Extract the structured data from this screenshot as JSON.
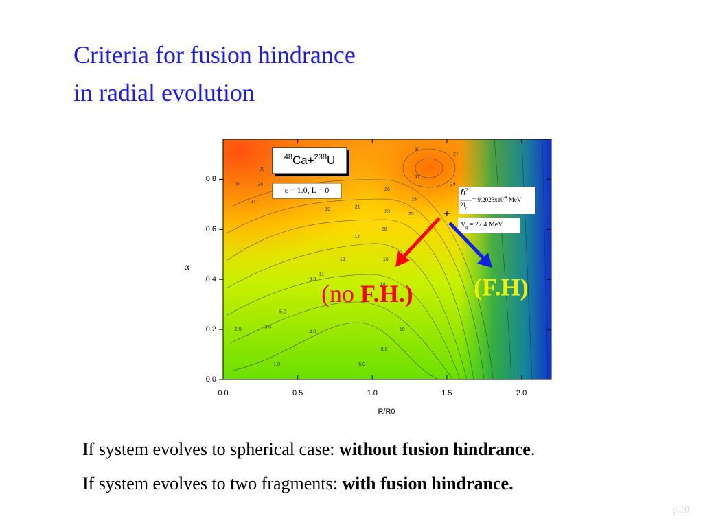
{
  "slide": {
    "title": [
      "Criteria for fusion hindrance",
      "in radial evolution"
    ],
    "lines": [
      {
        "text": "If system evolves to spherical case: ",
        "bold": "without fusion hindrance",
        "end": "."
      },
      {
        "text": "If system evolves to two fragments: ",
        "bold": "with fusion hindrance."
      }
    ],
    "page": "p.10"
  },
  "chart_data": {
    "type": "contour",
    "xlabel": "R/R0",
    "ylabel": "α",
    "xlim": [
      0,
      2.2
    ],
    "ylim": [
      0,
      0.96
    ],
    "xticks": [
      {
        "value": 0,
        "label": "0.0"
      },
      0.5,
      {
        "value": 1,
        "label": "1.0"
      },
      1.5,
      {
        "value": 2,
        "label": "2.0"
      }
    ],
    "yticks": [
      {
        "value": 0,
        "label": "0.0"
      },
      0.2,
      0.4,
      0.6,
      0.8
    ],
    "contour_labels": [
      {
        "x": 1.3,
        "y": 0.92,
        "label": "30"
      },
      {
        "x": 1.56,
        "y": 0.9,
        "label": "27"
      },
      {
        "x": 1.3,
        "y": 0.81,
        "label": "31"
      },
      {
        "x": 0.26,
        "y": 0.84,
        "label": "29"
      },
      {
        "x": 0.1,
        "y": 0.78,
        "label": "34"
      },
      {
        "x": 0.25,
        "y": 0.78,
        "label": "28"
      },
      {
        "x": 1.1,
        "y": 0.76,
        "label": "26"
      },
      {
        "x": 1.28,
        "y": 0.72,
        "label": "28"
      },
      {
        "x": 1.54,
        "y": 0.78,
        "label": "29"
      },
      {
        "x": 0.2,
        "y": 0.71,
        "label": "27"
      },
      {
        "x": 0.7,
        "y": 0.68,
        "label": "19"
      },
      {
        "x": 0.9,
        "y": 0.69,
        "label": "21"
      },
      {
        "x": 1.1,
        "y": 0.67,
        "label": "23"
      },
      {
        "x": 1.26,
        "y": 0.66,
        "label": "25"
      },
      {
        "x": 1.08,
        "y": 0.6,
        "label": "20"
      },
      {
        "x": 0.9,
        "y": 0.57,
        "label": "17"
      },
      {
        "x": 0.8,
        "y": 0.48,
        "label": "13"
      },
      {
        "x": 1.09,
        "y": 0.48,
        "label": "16"
      },
      {
        "x": 0.66,
        "y": 0.42,
        "label": "11"
      },
      {
        "x": 0.6,
        "y": 0.4,
        "label": "9.0"
      },
      {
        "x": 1.07,
        "y": 0.38,
        "label": "14"
      },
      {
        "x": 0.4,
        "y": 0.27,
        "label": "5.0"
      },
      {
        "x": 0.3,
        "y": 0.21,
        "label": "3.0"
      },
      {
        "x": 0.1,
        "y": 0.2,
        "label": "2.0"
      },
      {
        "x": 0.6,
        "y": 0.19,
        "label": "4.0"
      },
      {
        "x": 1.2,
        "y": 0.2,
        "label": "10"
      },
      {
        "x": 1.08,
        "y": 0.12,
        "label": "8.0"
      },
      {
        "x": 0.36,
        "y": 0.06,
        "label": "1.0"
      },
      {
        "x": 0.93,
        "y": 0.06,
        "label": "6.0"
      }
    ],
    "marker": {
      "x": 1.5,
      "y": 0.66,
      "label": "+"
    },
    "annotations": {
      "system": {
        "mass1": "48",
        "elem1": "Ca+",
        "mass2": "238",
        "elem2": "U"
      },
      "params": "ε = 1.0, L = 0",
      "inertia": {
        "hbar": "ℏ",
        "sq": "2",
        "den": "2J",
        "sub": "c",
        "eq": "= 9.2028x10",
        "exp": "-4",
        "unit": " MeV"
      },
      "barrier": {
        "v": "V",
        "sub": "q",
        "rest": " = 27.4 MeV"
      },
      "no_fh": {
        "open": "(no ",
        "bold": "F.H.)"
      },
      "fh": "(F.H)"
    }
  }
}
